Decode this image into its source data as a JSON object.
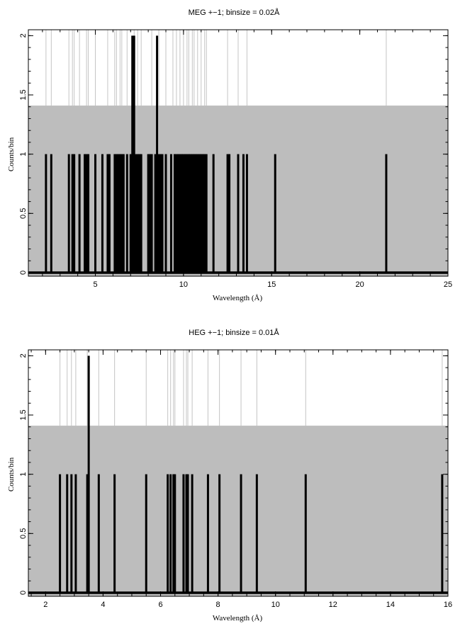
{
  "chart_data": [
    {
      "type": "bar",
      "title": "MEG +−1; binsize = 0.02Å",
      "xlabel": "Wavelength (Å)",
      "ylabel": "Counts/bin",
      "xlim": [
        1.2,
        25
      ],
      "ylim": [
        -0.03,
        2.05
      ],
      "xticks": [
        5,
        10,
        15,
        20,
        25
      ],
      "xtick_labels": [
        "5",
        "10",
        "15",
        "20",
        "25"
      ],
      "yticks": [
        0,
        0.5,
        1,
        1.5,
        2
      ],
      "ytick_labels": [
        "0",
        "0.5",
        "1",
        "1.5",
        "2"
      ],
      "error_level": 1.41,
      "series": [
        {
          "x": [
            2.2,
            2.5,
            3.5,
            3.7,
            3.8,
            4.1,
            4.4,
            4.5,
            4.6,
            5.0,
            5.4,
            5.7,
            5.8,
            6.1,
            6.2,
            6.3,
            6.4,
            6.5,
            6.6,
            6.8,
            7.0,
            7.1,
            7.2,
            7.3,
            7.4,
            7.5,
            7.6,
            8.0,
            8.1,
            8.2,
            8.4,
            8.5,
            8.6,
            8.7,
            8.8,
            9.0,
            9.3,
            9.5,
            9.6,
            9.7,
            9.8,
            9.9,
            10.0,
            10.1,
            10.2,
            10.3,
            10.4,
            10.5,
            10.6,
            10.7,
            10.8,
            10.9,
            11.0,
            11.1,
            11.2,
            11.3,
            11.7,
            12.5,
            12.6,
            13.1,
            13.4,
            13.6,
            15.2,
            21.5
          ],
          "values": [
            1,
            1,
            1,
            1,
            1,
            1,
            1,
            1,
            1,
            1,
            1,
            1,
            1,
            1,
            1,
            1,
            1,
            1,
            1,
            1,
            1,
            2,
            2,
            1,
            1,
            1,
            1,
            1,
            1,
            1,
            1,
            2,
            1,
            1,
            1,
            1,
            1,
            1,
            1,
            1,
            1,
            1,
            1,
            1,
            1,
            1,
            1,
            1,
            1,
            1,
            1,
            1,
            1,
            1,
            1,
            1,
            1,
            1,
            1,
            1,
            1,
            1,
            1,
            1
          ]
        }
      ],
      "error_lines_x": [
        2.2,
        2.5,
        3.5,
        3.7,
        3.8,
        4.1,
        4.5,
        4.6,
        5.0,
        5.7,
        6.1,
        6.2,
        6.4,
        6.5,
        6.8,
        7.2,
        7.4,
        7.6,
        8.2,
        8.6,
        9.0,
        9.4,
        9.6,
        9.8,
        10.0,
        10.2,
        10.3,
        10.5,
        10.6,
        10.8,
        11.0,
        11.2,
        11.3,
        12.5,
        13.1,
        13.6,
        21.5
      ],
      "grid": false
    },
    {
      "type": "bar",
      "title": "HEG +−1; binsize = 0.01Å",
      "xlabel": "Wavelength (Å)",
      "ylabel": "Counts/bin",
      "xlim": [
        1.4,
        16
      ],
      "ylim": [
        -0.03,
        2.05
      ],
      "xticks": [
        2,
        4,
        6,
        8,
        10,
        12,
        14,
        16
      ],
      "xtick_labels": [
        "2",
        "4",
        "6",
        "8",
        "10",
        "12",
        "14",
        "16"
      ],
      "yticks": [
        0,
        0.5,
        1,
        1.5,
        2
      ],
      "ytick_labels": [
        "0",
        "0.5",
        "1",
        "1.5",
        "2"
      ],
      "error_level": 1.41,
      "series": [
        {
          "x": [
            2.5,
            2.75,
            2.9,
            3.05,
            3.45,
            3.5,
            3.85,
            4.4,
            5.5,
            6.25,
            6.35,
            6.45,
            6.5,
            6.8,
            6.9,
            6.95,
            7.1,
            7.65,
            8.05,
            8.8,
            9.35,
            11.05,
            15.8
          ],
          "values": [
            1,
            1,
            1,
            1,
            1,
            2,
            1,
            1,
            1,
            1,
            1,
            1,
            1,
            1,
            1,
            1,
            1,
            1,
            1,
            1,
            1,
            1,
            1
          ]
        }
      ],
      "error_lines_x": [
        2.5,
        2.75,
        2.9,
        3.05,
        3.45,
        3.85,
        4.4,
        5.5,
        6.25,
        6.35,
        6.45,
        6.5,
        6.8,
        6.9,
        6.95,
        7.1,
        7.65,
        8.05,
        8.8,
        9.35,
        11.05,
        15.8
      ],
      "grid": false
    }
  ]
}
